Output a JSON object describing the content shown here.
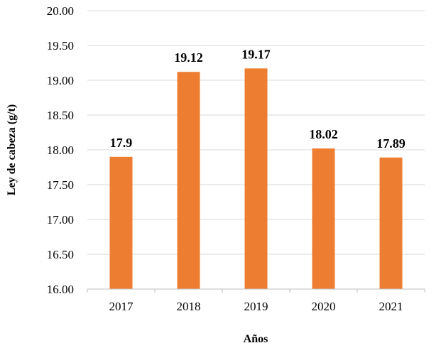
{
  "chart_data": {
    "type": "bar",
    "categories": [
      "2017",
      "2018",
      "2019",
      "2020",
      "2021"
    ],
    "values": [
      17.9,
      19.12,
      19.17,
      18.02,
      17.89
    ],
    "data_labels": [
      "17.9",
      "19.12",
      "19.17",
      "18.02",
      "17.89"
    ],
    "title": "",
    "xlabel": "Años",
    "ylabel": "Ley de cabeza (g/t)",
    "ylim": [
      16.0,
      20.0
    ],
    "yticks": [
      16.0,
      16.5,
      17.0,
      17.5,
      18.0,
      18.5,
      19.0,
      19.5,
      20.0
    ],
    "ytick_labels": [
      "16.00",
      "16.50",
      "17.00",
      "17.50",
      "18.00",
      "18.50",
      "19.00",
      "19.50",
      "20.00"
    ],
    "grid": "horizontal",
    "legend": "none",
    "colors": {
      "bar": "#ED7D31",
      "grid": "#D9D9D9",
      "axis": "#BFBFBF",
      "text": "#000000"
    }
  }
}
